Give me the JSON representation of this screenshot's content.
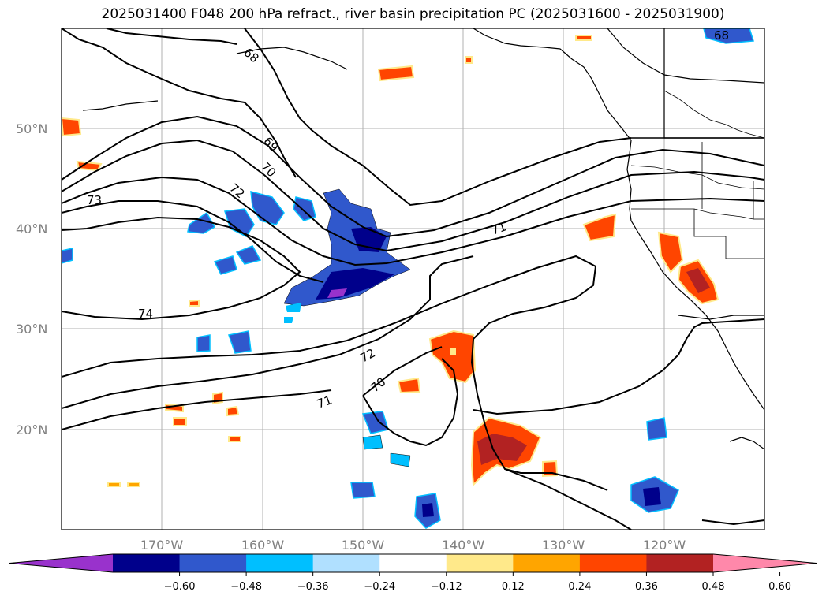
{
  "title": "2025031400 F048 200 hPa refract., river basin precipitation PC (2025031600 - 2025031900)",
  "lat_labels": [
    "50°N",
    "40°N",
    "30°N",
    "20°N"
  ],
  "lon_labels": [
    "170°W",
    "160°W",
    "150°W",
    "140°W",
    "130°W",
    "120°W"
  ],
  "contour_labels": [
    "68",
    "69",
    "70",
    "72",
    "73",
    "74",
    "71",
    "72",
    "71",
    "70",
    "68"
  ],
  "colorbar": {
    "ticks": [
      "−0.60",
      "−0.48",
      "−0.36",
      "−0.24",
      "−0.12",
      "0.12",
      "0.24",
      "0.36",
      "0.48",
      "0.60"
    ],
    "colors": [
      "#9932cc",
      "#00008b",
      "#3058cc",
      "#00bfff",
      "#b0e0ff",
      "#ffffff",
      "#ffe98a",
      "#ffa500",
      "#ff4500",
      "#b22222",
      "#ff88aa"
    ]
  },
  "colors": {
    "grid": "#b0b0b0",
    "coast": "#000000",
    "contour": "#000000"
  }
}
